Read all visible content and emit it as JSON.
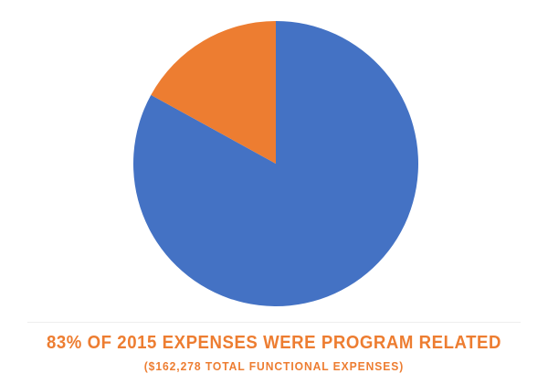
{
  "chart_data": {
    "type": "pie",
    "slices": [
      {
        "value": 83,
        "color": "#4472C4"
      },
      {
        "value": 17,
        "color": "#ED7D31"
      }
    ],
    "start_angle_deg": 0,
    "direction": "clockwise",
    "title": "83% OF 2015 EXPENSES WERE PROGRAM RELATED",
    "subtitle": "($162,278 TOTAL FUNCTIONAL EXPENSES)",
    "title_color": "#ED7D31"
  }
}
